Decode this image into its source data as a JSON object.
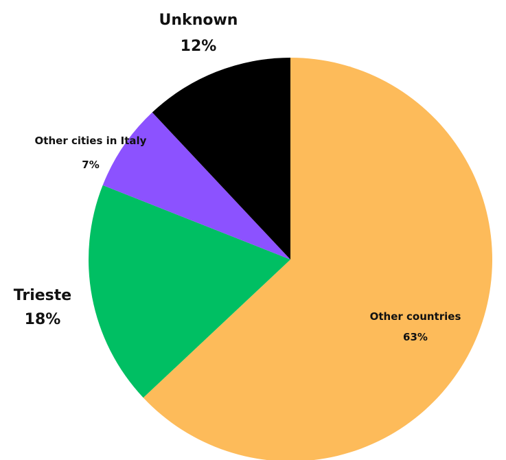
{
  "chart_data": {
    "type": "pie",
    "title": "",
    "start_angle_deg": 0,
    "direction": "clockwise",
    "slices": [
      {
        "label": "Other countries",
        "value": 63,
        "value_label": "63%",
        "color": "#fdbb5a"
      },
      {
        "label": "Trieste",
        "value": 18,
        "value_label": "18%",
        "color": "#00bf63"
      },
      {
        "label": "Other cities in Italy",
        "value": 7,
        "value_label": "7%",
        "color": "#8c52ff"
      },
      {
        "label": "Unknown",
        "value": 12,
        "value_label": "12%",
        "color": "#000000"
      }
    ]
  }
}
